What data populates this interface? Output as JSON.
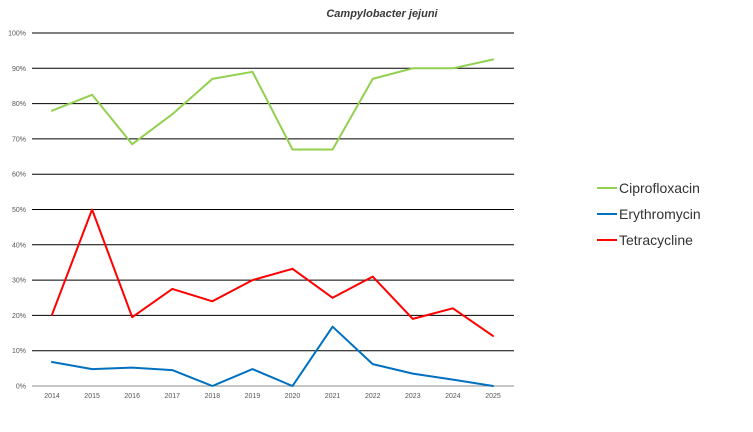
{
  "chart_data": {
    "type": "line",
    "title": "Campylobacter jejuni",
    "xlabel": "",
    "ylabel": "",
    "x": [
      "2014",
      "2015",
      "2016",
      "2017",
      "2018",
      "2019",
      "2020",
      "2021",
      "2022",
      "2023",
      "2024",
      "2025"
    ],
    "ylim": [
      0,
      100
    ],
    "y_ticks": [
      "0%",
      "10%",
      "20%",
      "30%",
      "40%",
      "50%",
      "60%",
      "70%",
      "80%",
      "90%",
      "100%"
    ],
    "grid": true,
    "legend_position": "right",
    "series": [
      {
        "name": "Ciprofloxacin",
        "color": "#92d050",
        "values": [
          78,
          82.5,
          68.5,
          77,
          87,
          89,
          67,
          67,
          87,
          90,
          90,
          92.5
        ]
      },
      {
        "name": "Erythromycin",
        "color": "#0070c0",
        "values": [
          6.8,
          4.8,
          5.2,
          4.5,
          0,
          4.8,
          0,
          16.8,
          6.2,
          3.5,
          1.8,
          0
        ]
      },
      {
        "name": "Tetracycline",
        "color": "#ff0000",
        "values": [
          20.2,
          50,
          19.5,
          27.5,
          24,
          30,
          33.2,
          25,
          31,
          19,
          22,
          14.2
        ]
      }
    ]
  }
}
